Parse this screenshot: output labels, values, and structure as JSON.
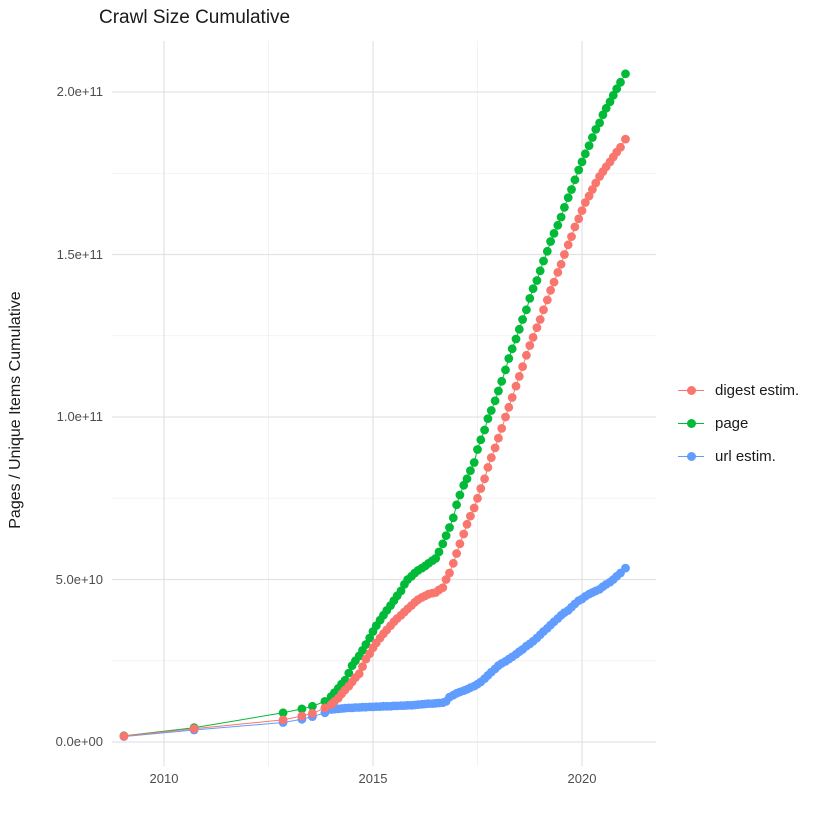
{
  "chart_data": {
    "type": "scatter",
    "title": "Crawl Size Cumulative",
    "xlabel": "",
    "ylabel": "Pages / Unique Items Cumulative",
    "legend_position": "right",
    "grid": true,
    "background": "#ffffff",
    "grid_major_color": "#e3e3e3",
    "grid_minor_color": "#efefef",
    "xlim": [
      2008.76,
      2021.77
    ],
    "ylim_pages": [
      0,
      216000000000
    ],
    "value_scale": 10000000000,
    "value_unit": "pages (point values below are in units of 1e10)",
    "yticks": [
      {
        "label": "0.0e+00",
        "value": 0
      },
      {
        "label": "5.0e+10",
        "value": 5
      },
      {
        "label": "1.0e+11",
        "value": 10
      },
      {
        "label": "1.5e+11",
        "value": 15
      },
      {
        "label": "2.0e+11",
        "value": 20
      }
    ],
    "y_minor": [
      2.5,
      7.5,
      12.5,
      17.5
    ],
    "xticks": [
      {
        "label": "2010",
        "year": 2010
      },
      {
        "label": "2015",
        "year": 2015
      },
      {
        "label": "2020",
        "year": 2020
      }
    ],
    "x_minor": [
      2012.5,
      2017.5
    ],
    "series": [
      {
        "name": "digest estim.",
        "color": "#F8766D",
        "points": [
          [
            2009.04,
            0.18
          ],
          [
            2010.72,
            0.41
          ],
          [
            2012.85,
            0.68
          ],
          [
            2013.3,
            0.8
          ],
          [
            2013.55,
            0.88
          ],
          [
            2013.85,
            1.05
          ],
          [
            2014.0,
            1.15
          ],
          [
            2014.08,
            1.25
          ],
          [
            2014.17,
            1.35
          ],
          [
            2014.25,
            1.48
          ],
          [
            2014.33,
            1.6
          ],
          [
            2014.42,
            1.72
          ],
          [
            2014.5,
            1.85
          ],
          [
            2014.58,
            1.98
          ],
          [
            2014.67,
            2.1
          ],
          [
            2014.75,
            2.32
          ],
          [
            2014.83,
            2.55
          ],
          [
            2014.92,
            2.72
          ],
          [
            2015.0,
            2.9
          ],
          [
            2015.08,
            3.05
          ],
          [
            2015.17,
            3.2
          ],
          [
            2015.25,
            3.33
          ],
          [
            2015.33,
            3.45
          ],
          [
            2015.42,
            3.58
          ],
          [
            2015.5,
            3.7
          ],
          [
            2015.58,
            3.8
          ],
          [
            2015.67,
            3.9
          ],
          [
            2015.75,
            4.0
          ],
          [
            2015.83,
            4.1
          ],
          [
            2015.92,
            4.2
          ],
          [
            2016.0,
            4.3
          ],
          [
            2016.08,
            4.38
          ],
          [
            2016.17,
            4.45
          ],
          [
            2016.25,
            4.5
          ],
          [
            2016.33,
            4.55
          ],
          [
            2016.42,
            4.58
          ],
          [
            2016.5,
            4.6
          ],
          [
            2016.58,
            4.68
          ],
          [
            2016.67,
            4.75
          ],
          [
            2016.75,
            5.0
          ],
          [
            2016.83,
            5.2
          ],
          [
            2016.92,
            5.5
          ],
          [
            2017.0,
            5.8
          ],
          [
            2017.08,
            6.1
          ],
          [
            2017.17,
            6.4
          ],
          [
            2017.25,
            6.7
          ],
          [
            2017.33,
            6.95
          ],
          [
            2017.42,
            7.2
          ],
          [
            2017.5,
            7.5
          ],
          [
            2017.58,
            7.8
          ],
          [
            2017.67,
            8.1
          ],
          [
            2017.75,
            8.45
          ],
          [
            2017.83,
            8.75
          ],
          [
            2017.92,
            9.05
          ],
          [
            2018.0,
            9.35
          ],
          [
            2018.08,
            9.65
          ],
          [
            2018.17,
            10.0
          ],
          [
            2018.25,
            10.3
          ],
          [
            2018.33,
            10.6
          ],
          [
            2018.42,
            10.95
          ],
          [
            2018.5,
            11.25
          ],
          [
            2018.58,
            11.55
          ],
          [
            2018.67,
            11.9
          ],
          [
            2018.75,
            12.2
          ],
          [
            2018.83,
            12.45
          ],
          [
            2018.92,
            12.75
          ],
          [
            2019.0,
            13.0
          ],
          [
            2019.08,
            13.3
          ],
          [
            2019.17,
            13.6
          ],
          [
            2019.25,
            13.9
          ],
          [
            2019.33,
            14.15
          ],
          [
            2019.42,
            14.45
          ],
          [
            2019.5,
            14.7
          ],
          [
            2019.58,
            15.0
          ],
          [
            2019.67,
            15.3
          ],
          [
            2019.75,
            15.55
          ],
          [
            2019.83,
            15.85
          ],
          [
            2019.92,
            16.1
          ],
          [
            2020.0,
            16.35
          ],
          [
            2020.08,
            16.6
          ],
          [
            2020.17,
            16.8
          ],
          [
            2020.25,
            17.0
          ],
          [
            2020.33,
            17.2
          ],
          [
            2020.42,
            17.4
          ],
          [
            2020.5,
            17.55
          ],
          [
            2020.58,
            17.7
          ],
          [
            2020.67,
            17.85
          ],
          [
            2020.75,
            18.0
          ],
          [
            2020.83,
            18.15
          ],
          [
            2020.92,
            18.3
          ],
          [
            2021.04,
            18.55
          ]
        ]
      },
      {
        "name": "page",
        "color": "#00BA38",
        "points": [
          [
            2009.04,
            0.19
          ],
          [
            2010.72,
            0.44
          ],
          [
            2012.85,
            0.9
          ],
          [
            2013.3,
            1.02
          ],
          [
            2013.55,
            1.1
          ],
          [
            2013.85,
            1.25
          ],
          [
            2014.0,
            1.4
          ],
          [
            2014.08,
            1.52
          ],
          [
            2014.17,
            1.65
          ],
          [
            2014.25,
            1.78
          ],
          [
            2014.33,
            1.9
          ],
          [
            2014.42,
            2.12
          ],
          [
            2014.5,
            2.35
          ],
          [
            2014.58,
            2.5
          ],
          [
            2014.67,
            2.65
          ],
          [
            2014.75,
            2.82
          ],
          [
            2014.83,
            3.0
          ],
          [
            2014.92,
            3.2
          ],
          [
            2015.0,
            3.4
          ],
          [
            2015.08,
            3.58
          ],
          [
            2015.17,
            3.75
          ],
          [
            2015.25,
            3.9
          ],
          [
            2015.33,
            4.05
          ],
          [
            2015.42,
            4.2
          ],
          [
            2015.5,
            4.35
          ],
          [
            2015.58,
            4.5
          ],
          [
            2015.67,
            4.65
          ],
          [
            2015.75,
            4.85
          ],
          [
            2015.83,
            5.0
          ],
          [
            2015.92,
            5.1
          ],
          [
            2016.0,
            5.2
          ],
          [
            2016.08,
            5.28
          ],
          [
            2016.17,
            5.35
          ],
          [
            2016.25,
            5.42
          ],
          [
            2016.33,
            5.5
          ],
          [
            2016.42,
            5.58
          ],
          [
            2016.5,
            5.65
          ],
          [
            2016.58,
            5.85
          ],
          [
            2016.67,
            6.1
          ],
          [
            2016.75,
            6.35
          ],
          [
            2016.83,
            6.6
          ],
          [
            2016.92,
            6.9
          ],
          [
            2017.0,
            7.3
          ],
          [
            2017.08,
            7.6
          ],
          [
            2017.17,
            7.9
          ],
          [
            2017.25,
            8.1
          ],
          [
            2017.33,
            8.35
          ],
          [
            2017.42,
            8.6
          ],
          [
            2017.5,
            9.0
          ],
          [
            2017.58,
            9.3
          ],
          [
            2017.67,
            9.6
          ],
          [
            2017.75,
            9.95
          ],
          [
            2017.83,
            10.2
          ],
          [
            2017.92,
            10.5
          ],
          [
            2018.0,
            10.8
          ],
          [
            2018.08,
            11.1
          ],
          [
            2018.17,
            11.45
          ],
          [
            2018.25,
            11.8
          ],
          [
            2018.33,
            12.1
          ],
          [
            2018.42,
            12.4
          ],
          [
            2018.5,
            12.7
          ],
          [
            2018.58,
            13.0
          ],
          [
            2018.67,
            13.3
          ],
          [
            2018.75,
            13.65
          ],
          [
            2018.83,
            13.95
          ],
          [
            2018.92,
            14.2
          ],
          [
            2019.0,
            14.5
          ],
          [
            2019.08,
            14.8
          ],
          [
            2019.17,
            15.1
          ],
          [
            2019.25,
            15.4
          ],
          [
            2019.33,
            15.65
          ],
          [
            2019.42,
            15.9
          ],
          [
            2019.5,
            16.15
          ],
          [
            2019.58,
            16.45
          ],
          [
            2019.67,
            16.75
          ],
          [
            2019.75,
            17.0
          ],
          [
            2019.83,
            17.3
          ],
          [
            2019.92,
            17.6
          ],
          [
            2020.0,
            17.85
          ],
          [
            2020.08,
            18.1
          ],
          [
            2020.17,
            18.35
          ],
          [
            2020.25,
            18.6
          ],
          [
            2020.33,
            18.85
          ],
          [
            2020.42,
            19.05
          ],
          [
            2020.5,
            19.3
          ],
          [
            2020.58,
            19.5
          ],
          [
            2020.67,
            19.7
          ],
          [
            2020.75,
            19.9
          ],
          [
            2020.83,
            20.1
          ],
          [
            2020.92,
            20.3
          ],
          [
            2021.04,
            20.56
          ]
        ]
      },
      {
        "name": "url estim.",
        "color": "#619CFF",
        "points": [
          [
            2009.04,
            0.17
          ],
          [
            2010.72,
            0.37
          ],
          [
            2012.85,
            0.6
          ],
          [
            2013.3,
            0.7
          ],
          [
            2013.55,
            0.78
          ],
          [
            2013.85,
            0.9
          ],
          [
            2014.0,
            1.0
          ],
          [
            2014.08,
            1.01
          ],
          [
            2014.17,
            1.02
          ],
          [
            2014.25,
            1.03
          ],
          [
            2014.33,
            1.04
          ],
          [
            2014.42,
            1.05
          ],
          [
            2014.5,
            1.05
          ],
          [
            2014.58,
            1.06
          ],
          [
            2014.67,
            1.06
          ],
          [
            2014.75,
            1.07
          ],
          [
            2014.83,
            1.07
          ],
          [
            2014.92,
            1.08
          ],
          [
            2015.0,
            1.08
          ],
          [
            2015.08,
            1.09
          ],
          [
            2015.17,
            1.09
          ],
          [
            2015.25,
            1.1
          ],
          [
            2015.33,
            1.1
          ],
          [
            2015.42,
            1.1
          ],
          [
            2015.5,
            1.11
          ],
          [
            2015.58,
            1.11
          ],
          [
            2015.67,
            1.12
          ],
          [
            2015.75,
            1.12
          ],
          [
            2015.83,
            1.13
          ],
          [
            2015.92,
            1.13
          ],
          [
            2016.0,
            1.14
          ],
          [
            2016.08,
            1.15
          ],
          [
            2016.17,
            1.16
          ],
          [
            2016.25,
            1.17
          ],
          [
            2016.33,
            1.18
          ],
          [
            2016.42,
            1.18
          ],
          [
            2016.5,
            1.19
          ],
          [
            2016.58,
            1.2
          ],
          [
            2016.67,
            1.21
          ],
          [
            2016.75,
            1.25
          ],
          [
            2016.83,
            1.38
          ],
          [
            2016.92,
            1.44
          ],
          [
            2017.0,
            1.5
          ],
          [
            2017.08,
            1.54
          ],
          [
            2017.17,
            1.58
          ],
          [
            2017.25,
            1.62
          ],
          [
            2017.33,
            1.67
          ],
          [
            2017.42,
            1.72
          ],
          [
            2017.5,
            1.78
          ],
          [
            2017.58,
            1.85
          ],
          [
            2017.67,
            1.95
          ],
          [
            2017.75,
            2.05
          ],
          [
            2017.83,
            2.15
          ],
          [
            2017.92,
            2.25
          ],
          [
            2018.0,
            2.35
          ],
          [
            2018.08,
            2.42
          ],
          [
            2018.17,
            2.48
          ],
          [
            2018.25,
            2.55
          ],
          [
            2018.33,
            2.62
          ],
          [
            2018.42,
            2.7
          ],
          [
            2018.5,
            2.78
          ],
          [
            2018.58,
            2.85
          ],
          [
            2018.67,
            2.95
          ],
          [
            2018.75,
            3.02
          ],
          [
            2018.83,
            3.1
          ],
          [
            2018.92,
            3.2
          ],
          [
            2019.0,
            3.3
          ],
          [
            2019.08,
            3.4
          ],
          [
            2019.17,
            3.5
          ],
          [
            2019.25,
            3.6
          ],
          [
            2019.33,
            3.7
          ],
          [
            2019.42,
            3.8
          ],
          [
            2019.5,
            3.9
          ],
          [
            2019.58,
            3.98
          ],
          [
            2019.67,
            4.05
          ],
          [
            2019.75,
            4.15
          ],
          [
            2019.83,
            4.25
          ],
          [
            2019.92,
            4.35
          ],
          [
            2020.0,
            4.4
          ],
          [
            2020.08,
            4.48
          ],
          [
            2020.17,
            4.55
          ],
          [
            2020.25,
            4.6
          ],
          [
            2020.33,
            4.65
          ],
          [
            2020.42,
            4.7
          ],
          [
            2020.5,
            4.78
          ],
          [
            2020.58,
            4.85
          ],
          [
            2020.67,
            4.92
          ],
          [
            2020.75,
            5.0
          ],
          [
            2020.83,
            5.1
          ],
          [
            2020.92,
            5.2
          ],
          [
            2021.04,
            5.35
          ]
        ]
      }
    ]
  }
}
